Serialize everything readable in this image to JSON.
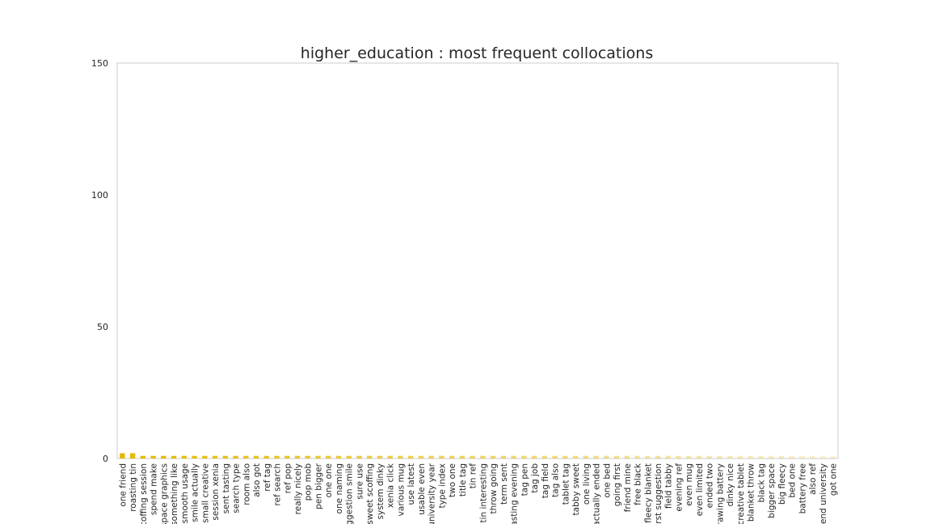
{
  "chart_data": {
    "type": "bar",
    "title": "higher_education : most frequent collocations",
    "xlabel": "",
    "ylabel": "",
    "ylim": [
      0,
      150
    ],
    "yticks": [
      0,
      50,
      100,
      150
    ],
    "grid": false,
    "bar_color": "#e6b800",
    "categories": [
      "one friend",
      "roasting tin",
      "scoffing session",
      "spend make",
      "space graphics",
      "something like",
      "smooth usage",
      "smile actually",
      "small creative",
      "session xenia",
      "sent tasting",
      "search type",
      "room also",
      "also got",
      "ref tag",
      "ref search",
      "ref pop",
      "really nicely",
      "pop mob",
      "pen bigger",
      "one one",
      "one naming",
      "suggestion smile",
      "sure use",
      "sweet scoffing",
      "system dinky",
      "xenia click",
      "various mug",
      "use latest",
      "usable even",
      "university year",
      "type index",
      "two one",
      "title tag",
      "tin ref",
      "tin interesting",
      "throw going",
      "term sent",
      "tasting evening",
      "tag pen",
      "tag job",
      "tag field",
      "tag also",
      "tablet tag",
      "tabby sweet",
      "one living",
      "actually ended",
      "one bed",
      "going first",
      "friend mine",
      "free black",
      "fleecy blanket",
      "first suggestion",
      "field tabby",
      "evening ref",
      "even mug",
      "even limited",
      "ended two",
      "drawing battery",
      "dinky nice",
      "creative tablet",
      "blanket throw",
      "black tag",
      "bigger space",
      "big fleecy",
      "bed one",
      "battery free",
      "also ref",
      "friend university",
      "got one"
    ],
    "values": [
      2,
      2,
      1,
      1,
      1,
      1,
      1,
      1,
      1,
      1,
      1,
      1,
      1,
      1,
      1,
      1,
      1,
      1,
      1,
      1,
      1,
      1,
      1,
      1,
      1,
      1,
      1,
      1,
      1,
      1,
      1,
      1,
      1,
      1,
      1,
      1,
      1,
      1,
      1,
      1,
      1,
      1,
      1,
      1,
      1,
      1,
      1,
      1,
      1,
      1,
      1,
      1,
      1,
      1,
      1,
      1,
      1,
      1,
      1,
      1,
      1,
      1,
      1,
      1,
      1,
      1,
      1,
      1,
      1,
      1
    ]
  }
}
